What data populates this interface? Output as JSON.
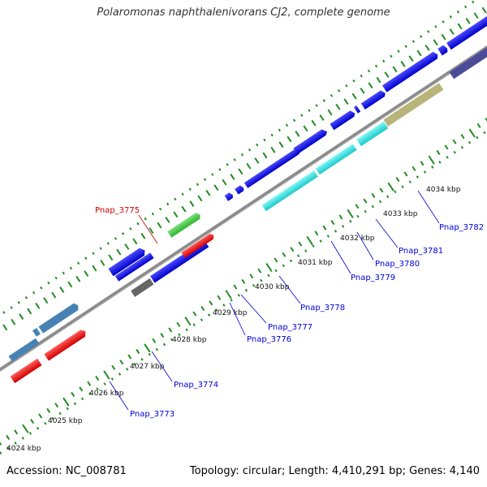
{
  "title": "Polaromonas naphthalenivorans CJ2, complete genome",
  "footer": {
    "accession": "Accession: NC_008781",
    "summary": "Topology: circular; Length: 4,410,291 bp; Genes: 4,140"
  },
  "ticks": [
    "4024 kbp",
    "4025 kbp",
    "4026 kbp",
    "4027 kbp",
    "4028 kbp",
    "4029 kbp",
    "4030 kbp",
    "4031 kbp",
    "4032 kbp",
    "4033 kbp",
    "4034 kbp"
  ],
  "genes": [
    {
      "id": "Pnap_3773",
      "color": "#0000dd"
    },
    {
      "id": "Pnap_3774",
      "color": "#0000dd"
    },
    {
      "id": "Pnap_3775",
      "color": "#cc0000"
    },
    {
      "id": "Pnap_3776",
      "color": "#0000dd"
    },
    {
      "id": "Pnap_3777",
      "color": "#0000dd"
    },
    {
      "id": "Pnap_3778",
      "color": "#0000dd"
    },
    {
      "id": "Pnap_3779",
      "color": "#0000dd"
    },
    {
      "id": "Pnap_3780",
      "color": "#0000dd"
    },
    {
      "id": "Pnap_3781",
      "color": "#0000dd"
    },
    {
      "id": "Pnap_3782",
      "color": "#0000dd"
    }
  ],
  "colors": {
    "backbone": "#8c8c8c",
    "gc_dots": "#228b22",
    "cds_blue": "#1010e8",
    "rna_cyan": "#22dddd",
    "trna_red": "#ee1111",
    "green": "#44cc44",
    "steel": "#4682b4",
    "khaki": "#b8b47a",
    "slate": "#4b4b9a",
    "gray": "#666666"
  }
}
